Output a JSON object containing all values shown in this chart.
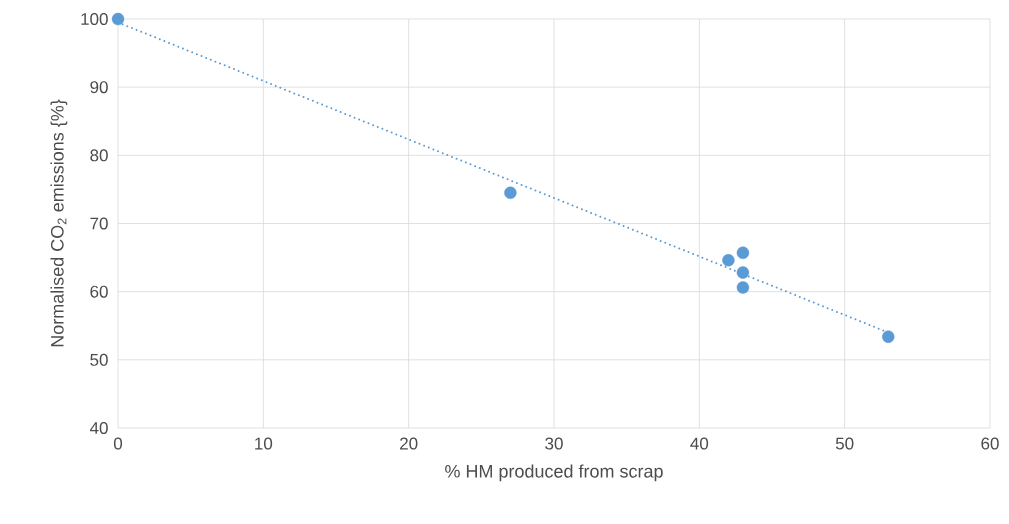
{
  "chart_data": {
    "type": "scatter",
    "xlabel": "% HM produced from scrap",
    "ylabel": "Normalised CO$_{2}$ emissions {%}",
    "xlim": [
      0,
      60
    ],
    "ylim": [
      40,
      100
    ],
    "xticks": [
      0,
      10,
      20,
      30,
      40,
      50,
      60
    ],
    "yticks": [
      40,
      50,
      60,
      70,
      80,
      90,
      100
    ],
    "grid": true,
    "series": [
      {
        "type": "scatter",
        "color": "#5b9bd5",
        "marker": "circle",
        "x": [
          0,
          27,
          42,
          43,
          43,
          43,
          53
        ],
        "values": [
          100,
          74.5,
          64.6,
          65.7,
          62.8,
          60.6,
          53.4
        ]
      },
      {
        "type": "line",
        "color": "#5b9bd5",
        "marker": "none",
        "line_style": "dotted",
        "x": [
          0,
          53
        ],
        "values": [
          99.5,
          54
        ]
      }
    ]
  }
}
